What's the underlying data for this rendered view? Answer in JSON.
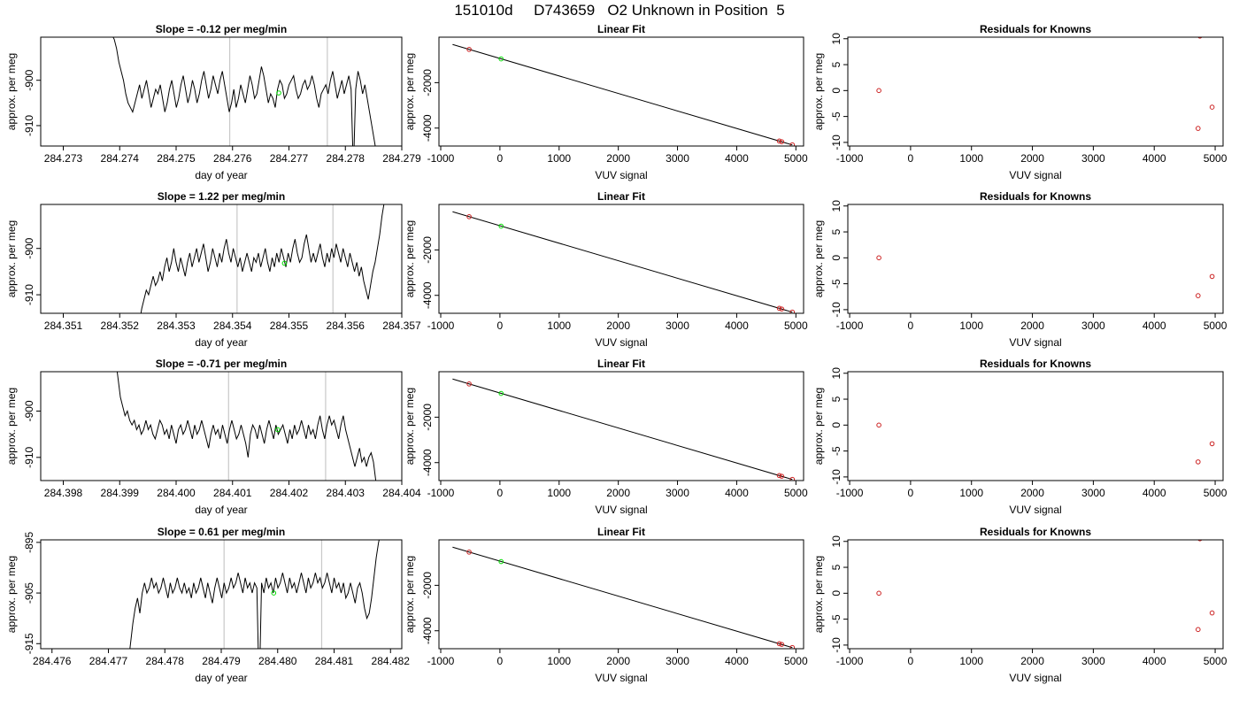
{
  "title": "151010d     D743659   O2 Unknown in Position  5",
  "colors": {
    "trace": "#000000",
    "marker": "#00dd00",
    "known": "#cc2222",
    "vline": "#c8c8c8"
  },
  "chart_data": [
    {
      "type": "line",
      "row": 1,
      "col": 1,
      "title": "Slope =  -0.12  per meg/min",
      "xlabel": "day of year",
      "ylabel": "approx. per meg",
      "xlim": [
        284.2726,
        284.279
      ],
      "ylim": [
        -914.5,
        -890.5
      ],
      "xticks": [
        "284.273",
        "284.274",
        "284.275",
        "284.276",
        "284.277",
        "284.278",
        "284.279"
      ],
      "yticks": [
        "-900",
        "-910"
      ],
      "vlines": [
        284.27595,
        284.27768
      ],
      "marker": [
        284.27682,
        -902.8
      ],
      "trace": {
        "x_start": 284.2737,
        "x_end": 284.27855,
        "values": [
          -889,
          -888,
          -889,
          -890,
          -890,
          -891,
          -893,
          -896,
          -898,
          -900,
          -903,
          -905,
          -906,
          -907,
          -905,
          -903,
          -901,
          -904,
          -902,
          -900,
          -903,
          -906,
          -904,
          -902,
          -903,
          -901,
          -904,
          -907,
          -905,
          -902,
          -900,
          -903,
          -906,
          -904,
          -901,
          -899,
          -902,
          -905,
          -903,
          -900,
          -902,
          -905,
          -903,
          -900,
          -898,
          -901,
          -904,
          -902,
          -899,
          -901,
          -903,
          -900,
          -898,
          -901,
          -904,
          -907,
          -905,
          -902,
          -906,
          -904,
          -901,
          -903,
          -905,
          -902,
          -899,
          -901,
          -904,
          -903,
          -900,
          -897,
          -899,
          -902,
          -905,
          -903,
          -904,
          -906,
          -902,
          -900,
          -901,
          -904,
          -903,
          -901,
          -900,
          -899,
          -902,
          -904,
          -903,
          -901,
          -900,
          -902,
          -901,
          -899,
          -901,
          -904,
          -906,
          -903,
          -902,
          -901,
          -903,
          -900,
          -898,
          -901,
          -904,
          -902,
          -900,
          -903,
          -901,
          -899,
          -902,
          -920,
          -902,
          -898,
          -900,
          -903,
          -901,
          -904,
          -907,
          -910,
          -913,
          -916
        ]
      }
    },
    {
      "type": "scatter",
      "row": 1,
      "col": 2,
      "title": "Linear Fit",
      "xlabel": "VUV signal",
      "ylabel": "approx. per meg",
      "xlim": [
        -1030,
        5130
      ],
      "ylim": [
        -4790,
        2
      ],
      "xticks": [
        "-1000",
        "0",
        "1000",
        "2000",
        "3000",
        "4000",
        "5000"
      ],
      "yticks": [
        "-2000",
        "-4000"
      ],
      "fit": [
        [
          -800,
          -318
        ],
        [
          4940,
          -4742
        ]
      ],
      "knowns": [
        [
          -520,
          -537
        ],
        [
          4720,
          -4570
        ],
        [
          4760,
          -4600
        ],
        [
          4940,
          -4738
        ]
      ],
      "unknown": [
        20,
        -955
      ]
    },
    {
      "type": "scatter",
      "row": 1,
      "col": 3,
      "title": "Residuals for Knowns",
      "xlabel": "VUV signal",
      "ylabel": "approx. per meg",
      "xlim": [
        -1030,
        5130
      ],
      "ylim": [
        -10.7,
        10.3
      ],
      "xticks": [
        "-1000",
        "0",
        "1000",
        "2000",
        "3000",
        "4000",
        "5000"
      ],
      "yticks": [
        "10",
        "5",
        "0",
        "-5",
        "-10"
      ],
      "points": [
        [
          -520,
          0.0
        ],
        [
          4720,
          -7.3
        ],
        [
          4750,
          10.5
        ],
        [
          4950,
          -3.2
        ]
      ]
    },
    {
      "type": "line",
      "row": 2,
      "col": 1,
      "title": "Slope =  1.22  per meg/min",
      "xlabel": "day of year",
      "ylabel": "approx. per meg",
      "xlim": [
        284.3506,
        284.357
      ],
      "ylim": [
        -914,
        -890.5
      ],
      "xticks": [
        "284.351",
        "284.352",
        "284.353",
        "284.354",
        "284.355",
        "284.356",
        "284.357"
      ],
      "yticks": [
        "-900",
        "-910"
      ],
      "vlines": [
        284.35408,
        284.35578
      ],
      "marker": [
        284.35492,
        -903.2
      ],
      "trace": {
        "x_start": 284.35235,
        "x_end": 284.35673,
        "values": [
          -916,
          -913,
          -911,
          -909,
          -910,
          -908,
          -906,
          -908,
          -907,
          -905,
          -907,
          -904,
          -902,
          -905,
          -903,
          -900,
          -903,
          -905,
          -902,
          -904,
          -906,
          -903,
          -901,
          -904,
          -902,
          -900,
          -903,
          -901,
          -899,
          -902,
          -905,
          -903,
          -900,
          -902,
          -904,
          -901,
          -903,
          -900,
          -898,
          -901,
          -903,
          -900,
          -902,
          -904,
          -902,
          -905,
          -903,
          -901,
          -903,
          -905,
          -902,
          -903,
          -901,
          -904,
          -902,
          -900,
          -903,
          -905,
          -902,
          -904,
          -901,
          -903,
          -900,
          -902,
          -904,
          -901,
          -903,
          -900,
          -898,
          -901,
          -903,
          -902,
          -899,
          -897,
          -900,
          -903,
          -901,
          -903,
          -901,
          -899,
          -902,
          -904,
          -901,
          -903,
          -900,
          -902,
          -899,
          -901,
          -903,
          -900,
          -902,
          -904,
          -901,
          -903,
          -905,
          -903,
          -906,
          -904,
          -907,
          -909,
          -911,
          -908,
          -905,
          -903,
          -900,
          -897,
          -893,
          -890,
          -887
        ]
      }
    },
    {
      "type": "scatter",
      "row": 2,
      "col": 2,
      "title": "Linear Fit",
      "xlabel": "VUV signal",
      "ylabel": "approx. per meg",
      "xlim": [
        -1030,
        5130
      ],
      "ylim": [
        -4790,
        2
      ],
      "xticks": [
        "-1000",
        "0",
        "1000",
        "2000",
        "3000",
        "4000",
        "5000"
      ],
      "yticks": [
        "-2000",
        "-4000"
      ],
      "fit": [
        [
          -800,
          -318
        ],
        [
          4940,
          -4742
        ]
      ],
      "knowns": [
        [
          -520,
          -537
        ],
        [
          4720,
          -4570
        ],
        [
          4760,
          -4600
        ],
        [
          4940,
          -4738
        ]
      ],
      "unknown": [
        20,
        -955
      ]
    },
    {
      "type": "scatter",
      "row": 2,
      "col": 3,
      "title": "Residuals for Knowns",
      "xlabel": "VUV signal",
      "ylabel": "approx. per meg",
      "xlim": [
        -1030,
        5130
      ],
      "ylim": [
        -10.7,
        10.3
      ],
      "xticks": [
        "-1000",
        "0",
        "1000",
        "2000",
        "3000",
        "4000",
        "5000"
      ],
      "yticks": [
        "10",
        "5",
        "0",
        "-5",
        "-10"
      ],
      "points": [
        [
          -520,
          0.0
        ],
        [
          4720,
          -7.3
        ],
        [
          4950,
          -3.6
        ]
      ]
    },
    {
      "type": "line",
      "row": 3,
      "col": 1,
      "title": "Slope =  -0.71  per meg/min",
      "xlabel": "day of year",
      "ylabel": "approx. per meg",
      "xlim": [
        284.3976,
        284.404
      ],
      "ylim": [
        -915,
        -891.5
      ],
      "xticks": [
        "284.398",
        "284.399",
        "284.400",
        "284.401",
        "284.402",
        "284.403",
        "284.404"
      ],
      "yticks": [
        "-900",
        "-910"
      ],
      "vlines": [
        284.40093,
        284.40265
      ],
      "marker": [
        284.4018,
        -904.0
      ],
      "trace": {
        "x_start": 284.39893,
        "x_end": 284.40358,
        "values": [
          -889,
          -893,
          -897,
          -899,
          -901,
          -900,
          -902,
          -903,
          -902,
          -904,
          -903,
          -905,
          -904,
          -902,
          -904,
          -903,
          -905,
          -906,
          -904,
          -902,
          -903,
          -905,
          -904,
          -906,
          -903,
          -905,
          -907,
          -904,
          -903,
          -905,
          -904,
          -902,
          -904,
          -906,
          -903,
          -905,
          -904,
          -902,
          -904,
          -906,
          -908,
          -905,
          -903,
          -905,
          -904,
          -906,
          -903,
          -905,
          -907,
          -904,
          -902,
          -904,
          -906,
          -905,
          -903,
          -905,
          -907,
          -910,
          -905,
          -903,
          -904,
          -906,
          -903,
          -905,
          -907,
          -904,
          -902,
          -904,
          -906,
          -903,
          -905,
          -904,
          -903,
          -905,
          -907,
          -904,
          -906,
          -903,
          -905,
          -904,
          -902,
          -904,
          -906,
          -903,
          -905,
          -904,
          -906,
          -903,
          -901,
          -904,
          -906,
          -903,
          -901,
          -903,
          -902,
          -904,
          -906,
          -903,
          -901,
          -904,
          -906,
          -908,
          -910,
          -912,
          -910,
          -908,
          -911,
          -910,
          -912,
          -910,
          -909,
          -911,
          -915,
          -918
        ]
      }
    },
    {
      "type": "scatter",
      "row": 3,
      "col": 2,
      "title": "Linear Fit",
      "xlabel": "VUV signal",
      "ylabel": "approx. per meg",
      "xlim": [
        -1030,
        5130
      ],
      "ylim": [
        -4790,
        2
      ],
      "xticks": [
        "-1000",
        "0",
        "1000",
        "2000",
        "3000",
        "4000",
        "5000"
      ],
      "yticks": [
        "-2000",
        "-4000"
      ],
      "fit": [
        [
          -800,
          -318
        ],
        [
          4940,
          -4742
        ]
      ],
      "knowns": [
        [
          -520,
          -537
        ],
        [
          4720,
          -4570
        ],
        [
          4760,
          -4600
        ],
        [
          4940,
          -4738
        ]
      ],
      "unknown": [
        20,
        -955
      ]
    },
    {
      "type": "scatter",
      "row": 3,
      "col": 3,
      "title": "Residuals for Knowns",
      "xlabel": "VUV signal",
      "ylabel": "approx. per meg",
      "xlim": [
        -1030,
        5130
      ],
      "ylim": [
        -10.7,
        10.3
      ],
      "xticks": [
        "-1000",
        "0",
        "1000",
        "2000",
        "3000",
        "4000",
        "5000"
      ],
      "yticks": [
        "10",
        "5",
        "0",
        "-5",
        "-10"
      ],
      "points": [
        [
          -520,
          0.0
        ],
        [
          4720,
          -7.1
        ],
        [
          4950,
          -3.6
        ]
      ]
    },
    {
      "type": "line",
      "row": 4,
      "col": 1,
      "title": "Slope =  0.61  per meg/min",
      "xlabel": "day of year",
      "ylabel": "approx. per meg",
      "xlim": [
        284.4758,
        284.4822
      ],
      "ylim": [
        -916,
        -894.5
      ],
      "xticks": [
        "284.476",
        "284.477",
        "284.478",
        "284.479",
        "284.480",
        "284.481",
        "284.482"
      ],
      "yticks": [
        "-895",
        "-905",
        "-915"
      ],
      "vlines": [
        284.47905,
        284.48078
      ],
      "marker": [
        284.47993,
        -905.0
      ],
      "trace": {
        "x_start": 284.47735,
        "x_end": 284.48183,
        "values": [
          -919,
          -915,
          -911,
          -908,
          -906,
          -909,
          -905,
          -903,
          -905,
          -904,
          -902,
          -904,
          -903,
          -905,
          -904,
          -902,
          -904,
          -906,
          -903,
          -905,
          -904,
          -902,
          -904,
          -905,
          -903,
          -905,
          -904,
          -906,
          -903,
          -905,
          -904,
          -902,
          -904,
          -906,
          -903,
          -905,
          -907,
          -904,
          -902,
          -904,
          -906,
          -903,
          -905,
          -904,
          -902,
          -904,
          -903,
          -901,
          -903,
          -905,
          -902,
          -904,
          -903,
          -905,
          -903,
          -904,
          -925,
          -903,
          -905,
          -902,
          -904,
          -903,
          -905,
          -902,
          -904,
          -903,
          -901,
          -903,
          -905,
          -902,
          -904,
          -903,
          -905,
          -903,
          -901,
          -903,
          -905,
          -902,
          -904,
          -903,
          -901,
          -903,
          -902,
          -904,
          -903,
          -901,
          -903,
          -905,
          -902,
          -904,
          -903,
          -905,
          -903,
          -906,
          -905,
          -903,
          -905,
          -907,
          -904,
          -903,
          -905,
          -908,
          -910,
          -909,
          -906,
          -902,
          -898,
          -895,
          -893
        ]
      }
    },
    {
      "type": "scatter",
      "row": 4,
      "col": 2,
      "title": "Linear Fit",
      "xlabel": "VUV signal",
      "ylabel": "approx. per meg",
      "xlim": [
        -1030,
        5130
      ],
      "ylim": [
        -4790,
        2
      ],
      "xticks": [
        "-1000",
        "0",
        "1000",
        "2000",
        "3000",
        "4000",
        "5000"
      ],
      "yticks": [
        "-2000",
        "-4000"
      ],
      "fit": [
        [
          -800,
          -318
        ],
        [
          4940,
          -4742
        ]
      ],
      "knowns": [
        [
          -520,
          -537
        ],
        [
          4720,
          -4570
        ],
        [
          4760,
          -4600
        ],
        [
          4940,
          -4738
        ]
      ],
      "unknown": [
        20,
        -955
      ]
    },
    {
      "type": "scatter",
      "row": 4,
      "col": 3,
      "title": "Residuals for Knowns",
      "xlabel": "VUV signal",
      "ylabel": "approx. per meg",
      "xlim": [
        -1030,
        5130
      ],
      "ylim": [
        -10.7,
        10.3
      ],
      "xticks": [
        "-1000",
        "0",
        "1000",
        "2000",
        "3000",
        "4000",
        "5000"
      ],
      "yticks": [
        "10",
        "5",
        "0",
        "-5",
        "-10"
      ],
      "points": [
        [
          -520,
          0.0
        ],
        [
          4720,
          -7.0
        ],
        [
          4750,
          10.5
        ],
        [
          4950,
          -3.8
        ]
      ]
    }
  ]
}
